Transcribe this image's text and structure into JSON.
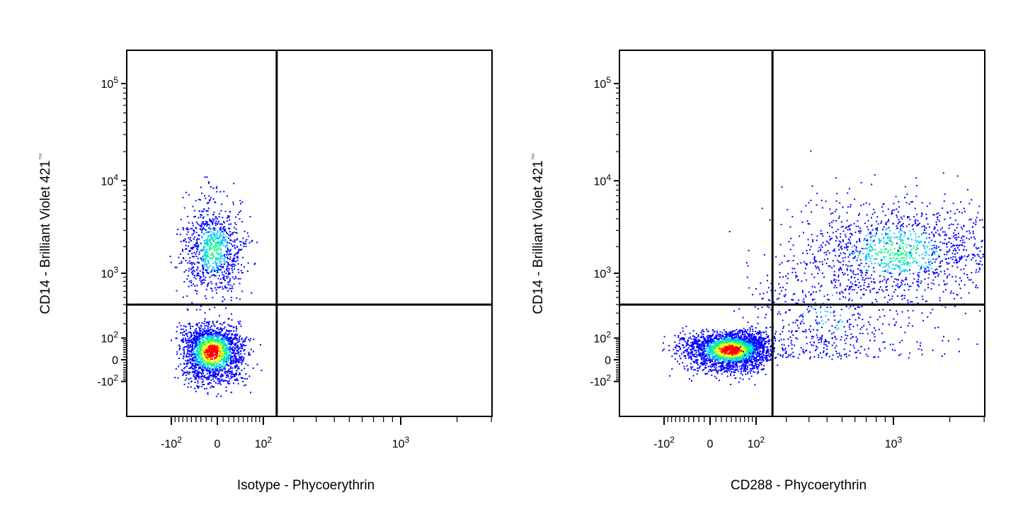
{
  "chart_data": [
    {
      "type": "scatter",
      "subtype": "flow-cytometry density dot plot (pseudocolor)",
      "xlabel": "Isotype - Phycoerythrin",
      "ylabel": "CD14 - Brilliant Violet 421",
      "ylabel_superscript": "™",
      "x_scale": "biexponential",
      "y_scale": "biexponential",
      "x_tick_labels": [
        {
          "value": -100,
          "label": "-10",
          "sup": "2"
        },
        {
          "value": 0,
          "label": "0",
          "sup": ""
        },
        {
          "value": 100,
          "label": "10",
          "sup": "2"
        },
        {
          "value": 1000,
          "label": "10",
          "sup": "3"
        }
      ],
      "y_tick_labels": [
        {
          "value": -100,
          "label": "-10",
          "sup": "2"
        },
        {
          "value": 0,
          "label": "0",
          "sup": ""
        },
        {
          "value": 100,
          "label": "10",
          "sup": "2"
        },
        {
          "value": 1000,
          "label": "10",
          "sup": "3"
        },
        {
          "value": 10000,
          "label": "10",
          "sup": "4"
        },
        {
          "value": 100000,
          "label": "10",
          "sup": "5"
        }
      ],
      "quadrant_gate": {
        "x": 140,
        "y": 400
      },
      "density_colors": [
        "#0000ff",
        "#00c8ff",
        "#00ff80",
        "#ffff00",
        "#ff0000"
      ],
      "populations": [
        {
          "x_center": -10,
          "y_center": 40,
          "x_spread": 30,
          "y_spread": 70,
          "count": 1900,
          "density_peak": "high"
        },
        {
          "x_center": -10,
          "y_center": 1800,
          "x_spread": 30,
          "y_spread": 0.28,
          "count": 900,
          "density_peak": "medium"
        }
      ]
    },
    {
      "type": "scatter",
      "subtype": "flow-cytometry density dot plot (pseudocolor)",
      "xlabel": "CD288 - Phycoerythrin",
      "ylabel": "CD14 - Brilliant Violet 421",
      "ylabel_superscript": "™",
      "x_scale": "biexponential",
      "y_scale": "biexponential",
      "x_tick_labels": [
        {
          "value": -100,
          "label": "-10",
          "sup": "2"
        },
        {
          "value": 0,
          "label": "0",
          "sup": ""
        },
        {
          "value": 100,
          "label": "10",
          "sup": "2"
        },
        {
          "value": 1000,
          "label": "10",
          "sup": "3"
        }
      ],
      "y_tick_labels": [
        {
          "value": -100,
          "label": "-10",
          "sup": "2"
        },
        {
          "value": 0,
          "label": "0",
          "sup": ""
        },
        {
          "value": 100,
          "label": "10",
          "sup": "2"
        },
        {
          "value": 1000,
          "label": "10",
          "sup": "3"
        },
        {
          "value": 10000,
          "label": "10",
          "sup": "4"
        },
        {
          "value": 100000,
          "label": "10",
          "sup": "5"
        }
      ],
      "quadrant_gate": {
        "x": 150,
        "y": 400
      },
      "density_colors": [
        "#0000ff",
        "#00c8ff",
        "#00ff80",
        "#ffff00",
        "#ff0000"
      ],
      "populations": [
        {
          "x_center": 40,
          "y_center": 45,
          "x_spread": 45,
          "y_spread": 45,
          "count": 2600,
          "density_peak": "high"
        },
        {
          "x_center": 1100,
          "y_center": 1700,
          "x_spread": 0.3,
          "y_spread": 0.28,
          "count": 1300,
          "density_peak": "medium"
        },
        {
          "x_center": 350,
          "y_center": 200,
          "x_spread": 0.35,
          "y_spread": 0.6,
          "count": 600,
          "density_peak": "low"
        }
      ]
    }
  ]
}
